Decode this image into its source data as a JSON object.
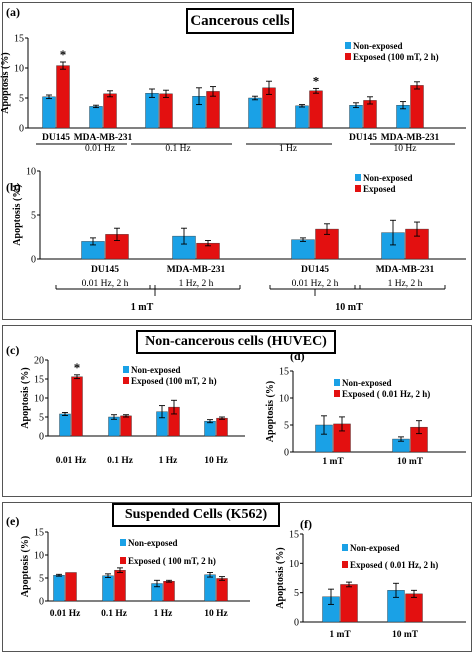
{
  "headings": {
    "cancerous": "Cancerous cells",
    "noncancerous": "Non-cancerous cells (HUVEC)",
    "suspended": "Suspended Cells (K562)"
  },
  "colors": {
    "non_exposed": "#1aa1e6",
    "exposed": "#e31010"
  },
  "chart_data": [
    {
      "panel": "(a)",
      "type": "bar",
      "ylabel": "Apoptosis (%)",
      "ylim": [
        0,
        15
      ],
      "yticks": [
        0,
        5,
        10,
        15
      ],
      "categories": [
        "DU145",
        "MDA-MB-231",
        "",
        "",
        "",
        "",
        "DU145",
        "MDA-MB-231"
      ],
      "groups": [
        "0.01 Hz",
        "0.1 Hz",
        "1 Hz",
        "10 Hz"
      ],
      "series": [
        {
          "name": "Non-exposed",
          "values": [
            5.2,
            3.6,
            5.8,
            5.3,
            5.0,
            3.7,
            3.8,
            3.8
          ],
          "errors": [
            0.3,
            0.2,
            0.7,
            1.4,
            0.3,
            0.2,
            0.4,
            0.6
          ]
        },
        {
          "name": "Exposed (100 mT, 2 h)",
          "values": [
            10.4,
            5.7,
            5.7,
            6.1,
            6.7,
            6.2,
            4.6,
            7.1
          ],
          "errors": [
            0.6,
            0.5,
            0.6,
            0.8,
            1.1,
            0.4,
            0.6,
            0.6
          ]
        }
      ],
      "annotations": [
        {
          "text": "*",
          "index": 0
        },
        {
          "text": "*",
          "index": 5
        }
      ],
      "legend": "top-right"
    },
    {
      "panel": "(b)",
      "type": "bar",
      "ylabel": "Apoptosis (%)",
      "ylim": [
        0,
        10
      ],
      "yticks": [
        0,
        5,
        10
      ],
      "categories": [
        "DU145",
        "MDA-MB-231",
        "DU145",
        "MDA-MB-231"
      ],
      "sublabels": [
        "0.01 Hz, 2 h",
        "1 Hz, 2 h",
        "0.01 Hz, 2 h",
        "1 Hz, 2 h"
      ],
      "groups": [
        "1 mT",
        "10 mT"
      ],
      "series": [
        {
          "name": "Non-exposed",
          "values": [
            2.0,
            2.6,
            2.2,
            3.0
          ],
          "errors": [
            0.4,
            0.9,
            0.2,
            1.4
          ]
        },
        {
          "name": "Exposed",
          "values": [
            2.8,
            1.8,
            3.4,
            3.4
          ],
          "errors": [
            0.7,
            0.3,
            0.6,
            0.8
          ]
        }
      ],
      "legend": "top-right"
    },
    {
      "panel": "(c)",
      "type": "bar",
      "ylabel": "Apoptosis (%)",
      "ylim": [
        0,
        20
      ],
      "yticks": [
        0,
        5,
        10,
        15,
        20
      ],
      "categories": [
        "0.01 Hz",
        "0.1 Hz",
        "1 Hz",
        "10 Hz"
      ],
      "series": [
        {
          "name": "Non-exposed",
          "values": [
            5.8,
            5.0,
            6.4,
            3.9
          ],
          "errors": [
            0.4,
            0.6,
            1.6,
            0.4
          ]
        },
        {
          "name": "Exposed (100 mT, 2 h)",
          "values": [
            15.6,
            5.3,
            7.6,
            4.7
          ],
          "errors": [
            0.5,
            0.3,
            1.8,
            0.3
          ]
        }
      ],
      "annotations": [
        {
          "text": "*",
          "index": 0
        }
      ],
      "legend": "top-right"
    },
    {
      "panel": "(d)",
      "type": "bar",
      "ylabel": "Apoptosis (%)",
      "ylim": [
        0,
        15
      ],
      "yticks": [
        0,
        5,
        10,
        15
      ],
      "categories": [
        "1 mT",
        "10 mT"
      ],
      "series": [
        {
          "name": "Non-exposed",
          "values": [
            5.0,
            2.4
          ],
          "errors": [
            1.7,
            0.4
          ]
        },
        {
          "name": "Exposed ( 0.01 Hz, 2 h)",
          "values": [
            5.2,
            4.6
          ],
          "errors": [
            1.3,
            1.2
          ]
        }
      ],
      "legend": "top-right"
    },
    {
      "panel": "(e)",
      "type": "bar",
      "ylabel": "Apoptosis (%)",
      "ylim": [
        0,
        15
      ],
      "yticks": [
        0,
        5,
        10,
        15
      ],
      "categories": [
        "0.01 Hz",
        "0.1 Hz",
        "1 Hz",
        "10 Hz"
      ],
      "series": [
        {
          "name": "Non-exposed",
          "values": [
            5.6,
            5.5,
            3.8,
            5.7
          ],
          "errors": [
            0.2,
            0.4,
            0.7,
            0.5
          ]
        },
        {
          "name": "Exposed ( 100 mT, 2 h)",
          "values": [
            6.2,
            6.7,
            4.3,
            4.9
          ],
          "errors": [
            0.0,
            0.5,
            0.2,
            0.4
          ]
        }
      ],
      "legend": "top-right"
    },
    {
      "panel": "(f)",
      "type": "bar",
      "ylabel": "Apoptosis (%)",
      "ylim": [
        0,
        15
      ],
      "yticks": [
        0,
        5,
        10,
        15
      ],
      "categories": [
        "1 mT",
        "10 mT"
      ],
      "series": [
        {
          "name": "Non-exposed",
          "values": [
            4.3,
            5.4
          ],
          "errors": [
            1.3,
            1.2
          ]
        },
        {
          "name": "Exposed ( 0.01 Hz, 2 h)",
          "values": [
            6.4,
            4.8
          ],
          "errors": [
            0.4,
            0.6
          ]
        }
      ],
      "legend": "top-right"
    }
  ]
}
